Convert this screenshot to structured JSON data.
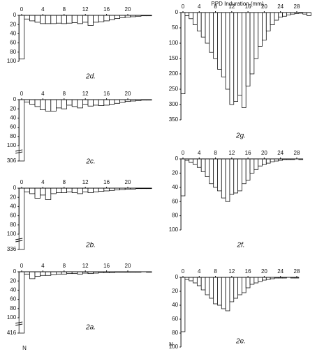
{
  "figure": {
    "xlabel": "PPD Induration (mm)",
    "ylabel": "N"
  },
  "chart_data": [
    {
      "type": "bar",
      "title": "2d.",
      "x": [
        0,
        1,
        2,
        3,
        4,
        5,
        6,
        7,
        8,
        9,
        10,
        11,
        12,
        13,
        14,
        15,
        16,
        17,
        18,
        19,
        20,
        21,
        22,
        23,
        24
      ],
      "values": [
        95,
        8,
        12,
        15,
        18,
        18,
        18,
        17,
        18,
        17,
        16,
        18,
        15,
        22,
        15,
        14,
        12,
        10,
        7,
        5,
        4,
        3,
        2,
        1,
        1
      ],
      "xticks": [
        0,
        4,
        8,
        12,
        16,
        20
      ],
      "ylim": [
        0,
        100
      ],
      "yticks": [
        0,
        20,
        40,
        60,
        80,
        100
      ],
      "axis_break": false
    },
    {
      "type": "bar",
      "title": "2c.",
      "x": [
        0,
        1,
        2,
        3,
        4,
        5,
        6,
        7,
        8,
        9,
        10,
        11,
        12,
        13,
        14,
        15,
        16,
        17,
        18,
        19,
        20,
        21,
        22,
        23,
        24
      ],
      "values": [
        306,
        5,
        10,
        15,
        22,
        25,
        25,
        18,
        20,
        12,
        15,
        18,
        10,
        14,
        12,
        13,
        12,
        10,
        8,
        6,
        4,
        3,
        2,
        1,
        1
      ],
      "xticks": [
        0,
        4,
        8,
        12,
        16,
        20
      ],
      "ylim": [
        0,
        100
      ],
      "yticks": [
        0,
        20,
        40,
        60,
        80,
        100,
        306
      ],
      "axis_break": true
    },
    {
      "type": "bar",
      "title": "2b.",
      "x": [
        0,
        1,
        2,
        3,
        4,
        5,
        6,
        7,
        8,
        9,
        10,
        11,
        12,
        13,
        14,
        15,
        16,
        17,
        18,
        19,
        20,
        21,
        22,
        23,
        24
      ],
      "values": [
        336,
        8,
        12,
        22,
        15,
        25,
        12,
        10,
        10,
        8,
        10,
        12,
        8,
        10,
        8,
        7,
        6,
        5,
        4,
        3,
        2,
        2,
        1,
        1,
        1
      ],
      "xticks": [
        0,
        4,
        8,
        12,
        16,
        20
      ],
      "ylim": [
        0,
        100
      ],
      "yticks": [
        0,
        20,
        40,
        60,
        80,
        100,
        336
      ],
      "axis_break": true
    },
    {
      "type": "bar",
      "title": "2a.",
      "x": [
        0,
        1,
        2,
        3,
        4,
        5,
        6,
        7,
        8,
        9,
        10,
        11,
        12,
        13,
        14,
        15,
        16,
        17,
        18,
        19,
        20,
        21,
        22,
        23,
        24
      ],
      "values": [
        416,
        5,
        15,
        10,
        8,
        8,
        6,
        5,
        5,
        4,
        4,
        5,
        3,
        4,
        3,
        2,
        2,
        2,
        1,
        1,
        1,
        1,
        1,
        0,
        1
      ],
      "xticks": [
        0,
        4,
        8,
        12,
        16,
        20
      ],
      "ylim": [
        0,
        100
      ],
      "yticks": [
        0,
        20,
        40,
        60,
        80,
        100,
        416
      ],
      "axis_break": true
    },
    {
      "type": "bar",
      "title": "2g.",
      "x": [
        0,
        1,
        2,
        3,
        4,
        5,
        6,
        7,
        8,
        9,
        10,
        11,
        12,
        13,
        14,
        15,
        16,
        17,
        18,
        19,
        20,
        21,
        22,
        23,
        24,
        25,
        26,
        27,
        28,
        29,
        30,
        31
      ],
      "values": [
        265,
        10,
        20,
        40,
        60,
        80,
        100,
        130,
        150,
        185,
        210,
        250,
        300,
        290,
        270,
        310,
        240,
        200,
        150,
        110,
        90,
        60,
        40,
        25,
        15,
        12,
        8,
        5,
        3,
        2,
        5,
        10
      ],
      "xticks": [
        0,
        4,
        8,
        12,
        16,
        20,
        24,
        28
      ],
      "ylim": [
        0,
        350
      ],
      "yticks": [
        0,
        50,
        100,
        150,
        200,
        250,
        300,
        350
      ],
      "axis_break": false
    },
    {
      "type": "bar",
      "title": "2f.",
      "x": [
        0,
        1,
        2,
        3,
        4,
        5,
        6,
        7,
        8,
        9,
        10,
        11,
        12,
        13,
        14,
        15,
        16,
        17,
        18,
        19,
        20,
        21,
        22,
        23,
        24,
        25,
        26,
        27,
        28,
        29
      ],
      "values": [
        52,
        2,
        5,
        8,
        12,
        18,
        25,
        35,
        40,
        45,
        55,
        60,
        50,
        48,
        45,
        35,
        30,
        20,
        15,
        10,
        8,
        6,
        4,
        3,
        2,
        1,
        1,
        1,
        0,
        1
      ],
      "xticks": [
        0,
        4,
        8,
        12,
        16,
        20,
        24,
        28
      ],
      "ylim": [
        0,
        100
      ],
      "yticks": [
        0,
        20,
        40,
        60,
        80,
        100
      ],
      "axis_break": false
    },
    {
      "type": "bar",
      "title": "2e.",
      "x": [
        0,
        1,
        2,
        3,
        4,
        5,
        6,
        7,
        8,
        9,
        10,
        11,
        12,
        13,
        14,
        15,
        16,
        17,
        18,
        19,
        20,
        21,
        22,
        23,
        24,
        25,
        26,
        27,
        28
      ],
      "values": [
        78,
        3,
        5,
        8,
        12,
        18,
        25,
        30,
        38,
        40,
        45,
        48,
        35,
        30,
        25,
        22,
        15,
        10,
        8,
        6,
        4,
        3,
        2,
        1,
        1,
        1,
        0,
        1,
        1
      ],
      "xticks": [
        0,
        4,
        8,
        12,
        16,
        20,
        24,
        28
      ],
      "ylim": [
        0,
        100
      ],
      "yticks": [
        0,
        20,
        40,
        60,
        80,
        100
      ],
      "axis_break": false
    }
  ]
}
